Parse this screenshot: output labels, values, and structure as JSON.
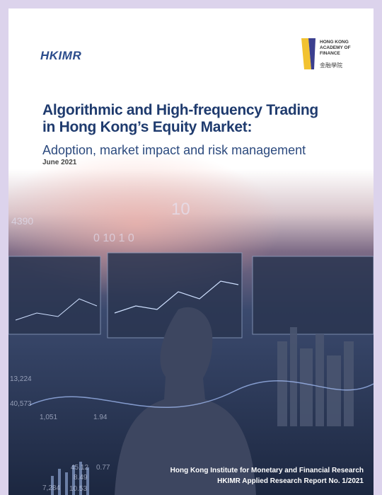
{
  "header": {
    "left_logo": "HKIMR",
    "right_logo": "HONG KONG ACADEMY OF FINANCE",
    "right_logo_chinese": "金融學院"
  },
  "title": {
    "line1": "Algorithmic and High-frequency Trading",
    "line2": "in Hong Kong’s Equity Market:",
    "subtitle": "Adoption, market impact and risk management",
    "date": "June 2021"
  },
  "image_figures": [
    "10",
    "0 10 1 0",
    "4390",
    "13,224",
    "40,573",
    "1,051",
    "1.94",
    "45.12",
    "0.77",
    "8.49",
    "7,284",
    "10.53"
  ],
  "footer": {
    "line1": "Hong Kong Institute for Monetary and Financial Research",
    "line2": "HKIMR Applied Research Report No. 1/2021"
  }
}
